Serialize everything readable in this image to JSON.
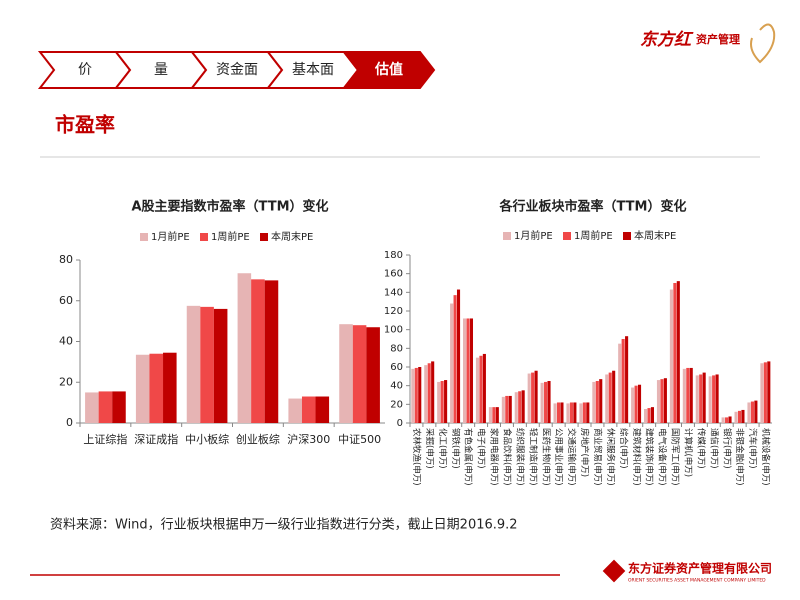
{
  "nav": [
    "价",
    "量",
    "资金面",
    "基本面",
    "估值"
  ],
  "active_tab": 4,
  "page_title": "市盈率",
  "source": "资料来源：Wind，行业板块根据申万一级行业指数进行分类，截止日期2016.9.2",
  "logo_top": {
    "brand": "东方红",
    "sub": "资产管理"
  },
  "logo_bottom": {
    "name": "东方证券资产管理有限公司",
    "english": "ORIENT SECURITIES ASSET MANAGEMENT COMPANY LIMITED"
  },
  "chart_data": [
    {
      "type": "bar",
      "title": "A股主要指数市盈率（TTM）变化",
      "categories": [
        "上证综指",
        "深证成指",
        "中小板综",
        "创业板综",
        "沪深300",
        "中证500"
      ],
      "series": [
        {
          "name": "1月前PE",
          "color": "#e6b4b4",
          "values": [
            15,
            33.5,
            57.5,
            73.5,
            12,
            48.5
          ]
        },
        {
          "name": "1周前PE",
          "color": "#f04848",
          "values": [
            15.5,
            34,
            57,
            70.5,
            13,
            48
          ]
        },
        {
          "name": "本周末PE",
          "color": "#c00000",
          "values": [
            15.5,
            34.5,
            56,
            70,
            13,
            47
          ]
        }
      ],
      "ylim": [
        0,
        80
      ],
      "yticks": [
        0,
        20,
        40,
        60,
        80
      ],
      "rotate_labels": false
    },
    {
      "type": "bar",
      "title": "各行业板块市盈率（TTM）变化",
      "categories": [
        "农林牧渔(申万)",
        "采掘(申万)",
        "化工(申万)",
        "钢铁(申万)",
        "有色金属(申万)",
        "电子(申万)",
        "家用电器(申万)",
        "食品饮料(申万)",
        "纺织服装(申万)",
        "轻工制造(申万)",
        "医药生物(申万)",
        "公用事业(申万)",
        "交通运输(申万)",
        "房地产(申万)",
        "商业贸易(申万)",
        "休闲服务(申万)",
        "综合(申万)",
        "建筑材料(申万)",
        "建筑装饰(申万)",
        "电气设备(申万)",
        "国防军工(申万)",
        "计算机(申万)",
        "传媒(申万)",
        "通信(申万)",
        "银行(申万)",
        "非银金融(申万)",
        "汽车(申万)",
        "机械设备(申万)"
      ],
      "series": [
        {
          "name": "1月前PE",
          "color": "#e6b4b4",
          "values": [
            58,
            62,
            44,
            128,
            112,
            70,
            17,
            28,
            33,
            53,
            43,
            21,
            21,
            21,
            44,
            52,
            85,
            38,
            15,
            46,
            143,
            58,
            51,
            50,
            6,
            12,
            22,
            64
          ]
        },
        {
          "name": "1周前PE",
          "color": "#f04848",
          "values": [
            59,
            64,
            45,
            137,
            112,
            72,
            17,
            29,
            34,
            54,
            44,
            22,
            22,
            22,
            45,
            54,
            90,
            40,
            16,
            47,
            150,
            59,
            52,
            51,
            6,
            13,
            23,
            65
          ]
        },
        {
          "name": "本周末PE",
          "color": "#c00000",
          "values": [
            60,
            66,
            46,
            143,
            112,
            74,
            17,
            29,
            35,
            56,
            45,
            22,
            22,
            22,
            47,
            56,
            93,
            41,
            17,
            48,
            152,
            59,
            54,
            52,
            7,
            14,
            24,
            66
          ]
        }
      ],
      "ylim": [
        0,
        180
      ],
      "yticks": [
        0,
        20,
        40,
        60,
        80,
        100,
        120,
        140,
        160,
        180
      ],
      "rotate_labels": true
    }
  ]
}
